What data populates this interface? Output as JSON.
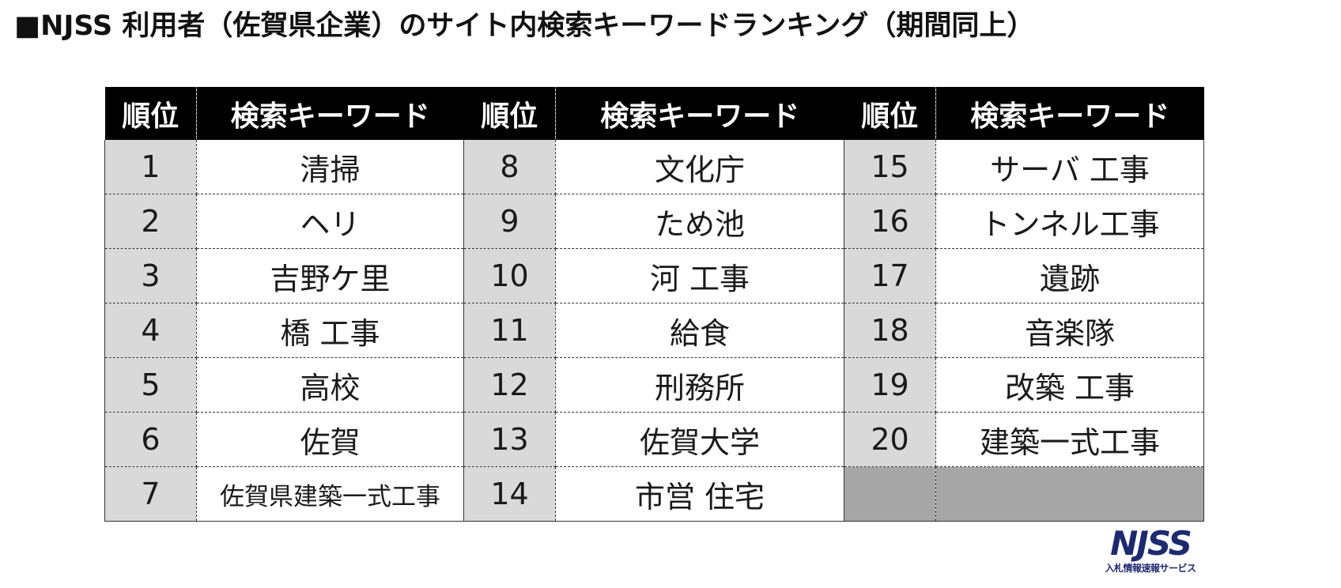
{
  "title": "■NJSS 利用者（佐賀県企業）のサイト内検索キーワードランキング（期間同上）",
  "headers": {
    "rank": "順位",
    "keyword": "検索キーワード"
  },
  "rows": [
    [
      {
        "rank": "1",
        "keyword": "清掃"
      },
      {
        "rank": "8",
        "keyword": "文化庁"
      },
      {
        "rank": "15",
        "keyword": "サーバ 工事"
      }
    ],
    [
      {
        "rank": "2",
        "keyword": "ヘリ"
      },
      {
        "rank": "9",
        "keyword": "ため池"
      },
      {
        "rank": "16",
        "keyword": "トンネル工事"
      }
    ],
    [
      {
        "rank": "3",
        "keyword": "吉野ケ里"
      },
      {
        "rank": "10",
        "keyword": "河 工事"
      },
      {
        "rank": "17",
        "keyword": "遺跡"
      }
    ],
    [
      {
        "rank": "4",
        "keyword": "橋 工事"
      },
      {
        "rank": "11",
        "keyword": "給食"
      },
      {
        "rank": "18",
        "keyword": "音楽隊"
      }
    ],
    [
      {
        "rank": "5",
        "keyword": "高校"
      },
      {
        "rank": "12",
        "keyword": "刑務所"
      },
      {
        "rank": "19",
        "keyword": "改築 工事"
      }
    ],
    [
      {
        "rank": "6",
        "keyword": "佐賀"
      },
      {
        "rank": "13",
        "keyword": "佐賀大学"
      },
      {
        "rank": "20",
        "keyword": "建築一式工事"
      }
    ],
    [
      {
        "rank": "7",
        "keyword": "佐賀県建築一式工事"
      },
      {
        "rank": "14",
        "keyword": "市営 住宅"
      },
      {
        "rank": "",
        "keyword": ""
      }
    ]
  ],
  "logo": {
    "mark": "NJSS",
    "sub": "入札情報速報サービス"
  },
  "colors": {
    "header_bg": "#000000",
    "rank_bg": "#d9d9d9",
    "empty_bg": "#a6a6a6",
    "logo": "#1e2a6e"
  }
}
